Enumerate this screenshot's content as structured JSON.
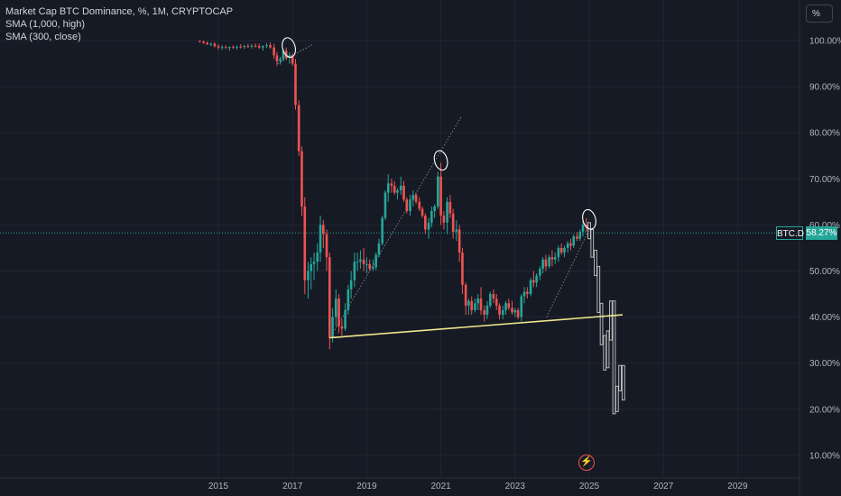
{
  "legend": {
    "title": "Market Cap BTC Dominance, %, 1M, CRYPTOCAP",
    "indicator1": "SMA (1,000, high)",
    "indicator2": "SMA (300, close)"
  },
  "scale_button_label": "%",
  "price_tag": {
    "symbol": "BTC.D",
    "value": "58.27%"
  },
  "event_icon": "lightning-icon",
  "colors": {
    "up": "#26a69a",
    "down": "#ef5350",
    "projection": "#c9c9c9",
    "support_line": "#f0e68c",
    "background": "#161a25",
    "grid": "#232632"
  },
  "chart_data": {
    "type": "candlestick",
    "title": "Market Cap BTC Dominance, %, 1M, CRYPTOCAP",
    "y_ticks": [
      "100.00%",
      "90.00%",
      "80.00%",
      "70.00%",
      "60.00%",
      "50.00%",
      "40.00%",
      "30.00%",
      "20.00%",
      "10.00%"
    ],
    "x_ticks": [
      "2015",
      "2017",
      "2019",
      "2021",
      "2023",
      "2025",
      "2027",
      "2029"
    ],
    "ylim": [
      8,
      108
    ],
    "last_value": 58.27,
    "grid": true,
    "support_trendline": [
      {
        "x": 2018.0,
        "y": 35.5
      },
      {
        "x": 2025.9,
        "y": 40.5
      }
    ],
    "annotations": [
      {
        "type": "circle",
        "x": 2016.9,
        "y": 98.5
      },
      {
        "type": "circle",
        "x": 2021.0,
        "y": 74.0
      },
      {
        "type": "circle",
        "x": 2025.0,
        "y": 61.2
      }
    ],
    "series_historical": [
      [
        2014.5,
        100,
        100,
        99.5,
        99.8
      ],
      [
        2014.6,
        99.8,
        100,
        99.3,
        99.5
      ],
      [
        2014.7,
        99.5,
        99.8,
        99.0,
        99.2
      ],
      [
        2014.8,
        99.2,
        99.6,
        98.8,
        99.3
      ],
      [
        2014.9,
        99.3,
        99.6,
        98.5,
        98.8
      ],
      [
        2015.0,
        98.8,
        99.2,
        98.0,
        98.5
      ],
      [
        2015.1,
        98.5,
        99.0,
        98.0,
        98.6
      ],
      [
        2015.2,
        98.6,
        99.0,
        98.2,
        98.4
      ],
      [
        2015.3,
        98.4,
        98.8,
        97.8,
        98.6
      ],
      [
        2015.4,
        98.6,
        99.0,
        98.2,
        98.5
      ],
      [
        2015.5,
        98.5,
        98.9,
        98.0,
        98.7
      ],
      [
        2015.6,
        98.7,
        99.2,
        98.3,
        98.6
      ],
      [
        2015.7,
        98.6,
        99.1,
        98.2,
        98.8
      ],
      [
        2015.8,
        98.8,
        99.3,
        98.4,
        98.7
      ],
      [
        2015.9,
        98.7,
        99.2,
        98.3,
        98.9
      ],
      [
        2016.0,
        98.9,
        99.4,
        98.5,
        98.8
      ],
      [
        2016.1,
        98.8,
        99.3,
        98.2,
        98.5
      ],
      [
        2016.2,
        98.5,
        99.0,
        97.8,
        98.8
      ],
      [
        2016.3,
        98.8,
        99.5,
        98.4,
        99.0
      ],
      [
        2016.4,
        99.0,
        99.6,
        98.2,
        98.5
      ],
      [
        2016.5,
        98.5,
        99.3,
        96.0,
        96.8
      ],
      [
        2016.58,
        96.8,
        97.5,
        94.5,
        95.5
      ],
      [
        2016.67,
        95.5,
        96.5,
        94.8,
        96.0
      ],
      [
        2016.75,
        96.0,
        98.2,
        95.5,
        97.8
      ],
      [
        2016.83,
        97.8,
        98.5,
        95.8,
        96.2
      ],
      [
        2016.92,
        96.2,
        97.5,
        95.0,
        96.8
      ],
      [
        2017.0,
        96.8,
        97.2,
        94.5,
        95.0
      ],
      [
        2017.08,
        95.0,
        96.0,
        85.0,
        86.0
      ],
      [
        2017.17,
        86.0,
        87.0,
        75.0,
        76.0
      ],
      [
        2017.25,
        76.0,
        77.0,
        62.0,
        64.0
      ],
      [
        2017.33,
        64.0,
        66.0,
        45.0,
        48.0
      ],
      [
        2017.42,
        48.0,
        52.0,
        44.0,
        50.0
      ],
      [
        2017.5,
        50.0,
        53.0,
        46.0,
        51.5
      ],
      [
        2017.58,
        51.5,
        54.0,
        48.0,
        52.0
      ],
      [
        2017.67,
        52.0,
        56.0,
        50.0,
        54.0
      ],
      [
        2017.75,
        54.0,
        62.0,
        52.0,
        60.0
      ],
      [
        2017.83,
        60.0,
        61.0,
        55.0,
        58.0
      ],
      [
        2017.92,
        58.0,
        59.0,
        50.0,
        53.0
      ],
      [
        2018.0,
        53.0,
        54.0,
        33.0,
        35.5
      ],
      [
        2018.08,
        35.5,
        42.0,
        34.5,
        40.0
      ],
      [
        2018.17,
        40.0,
        46.0,
        38.0,
        44.0
      ],
      [
        2018.25,
        44.0,
        45.0,
        36.5,
        38.0
      ],
      [
        2018.33,
        38.0,
        39.5,
        36.0,
        37.5
      ],
      [
        2018.42,
        37.5,
        43.0,
        37.0,
        41.5
      ],
      [
        2018.5,
        41.5,
        47.0,
        40.5,
        46.0
      ],
      [
        2018.58,
        46.0,
        50.0,
        44.0,
        48.0
      ],
      [
        2018.67,
        48.0,
        54.0,
        46.5,
        52.0
      ],
      [
        2018.75,
        52.0,
        54.0,
        50.0,
        52.0
      ],
      [
        2018.83,
        52.0,
        54.5,
        50.5,
        52.5
      ],
      [
        2018.92,
        52.5,
        55.0,
        50.0,
        51.5
      ],
      [
        2019.0,
        51.5,
        53.0,
        49.5,
        51.5
      ],
      [
        2019.08,
        51.5,
        52.5,
        50.0,
        50.5
      ],
      [
        2019.17,
        50.5,
        52.5,
        50.0,
        50.8
      ],
      [
        2019.25,
        50.8,
        54.0,
        50.2,
        53.5
      ],
      [
        2019.33,
        53.5,
        57.0,
        53.0,
        56.0
      ],
      [
        2019.42,
        56.0,
        62.0,
        55.5,
        61.5
      ],
      [
        2019.5,
        61.5,
        67.5,
        61.0,
        67.0
      ],
      [
        2019.58,
        67.0,
        71.0,
        65.0,
        69.0
      ],
      [
        2019.67,
        69.0,
        70.0,
        67.0,
        68.5
      ],
      [
        2019.75,
        68.5,
        69.5,
        66.5,
        67.0
      ],
      [
        2019.83,
        67.0,
        68.0,
        65.5,
        67.5
      ],
      [
        2019.92,
        67.5,
        70.5,
        66.5,
        68.5
      ],
      [
        2020.0,
        68.5,
        69.5,
        65.0,
        65.5
      ],
      [
        2020.08,
        65.5,
        66.0,
        62.5,
        63.0
      ],
      [
        2020.17,
        63.0,
        66.5,
        62.0,
        65.5
      ],
      [
        2020.25,
        65.5,
        67.5,
        64.0,
        66.5
      ],
      [
        2020.33,
        66.5,
        67.0,
        64.5,
        65.0
      ],
      [
        2020.42,
        65.0,
        66.0,
        63.0,
        63.5
      ],
      [
        2020.5,
        63.5,
        64.0,
        61.5,
        62.0
      ],
      [
        2020.58,
        62.0,
        62.5,
        58.0,
        59.0
      ],
      [
        2020.67,
        59.0,
        61.5,
        57.0,
        60.5
      ],
      [
        2020.75,
        60.5,
        64.0,
        59.5,
        63.0
      ],
      [
        2020.83,
        63.0,
        64.5,
        61.5,
        64.0
      ],
      [
        2020.92,
        64.0,
        71.5,
        63.5,
        70.5
      ],
      [
        2021.0,
        70.5,
        73.5,
        60.0,
        62.0
      ],
      [
        2021.08,
        62.0,
        63.0,
        59.0,
        60.5
      ],
      [
        2021.17,
        60.5,
        66.0,
        58.0,
        65.0
      ],
      [
        2021.25,
        65.0,
        66.5,
        61.5,
        62.5
      ],
      [
        2021.33,
        62.5,
        63.5,
        57.0,
        58.5
      ],
      [
        2021.42,
        58.5,
        61.0,
        56.5,
        59.0
      ],
      [
        2021.5,
        59.0,
        60.0,
        52.0,
        54.0
      ],
      [
        2021.58,
        54.0,
        55.0,
        45.0,
        47.0
      ],
      [
        2021.67,
        47.0,
        47.5,
        40.5,
        42.5
      ],
      [
        2021.75,
        42.5,
        44.0,
        40.5,
        43.5
      ],
      [
        2021.83,
        43.5,
        44.5,
        40.5,
        41.5
      ],
      [
        2021.92,
        41.5,
        44.0,
        41.0,
        43.0
      ],
      [
        2022.0,
        43.0,
        45.0,
        41.5,
        44.0
      ],
      [
        2022.08,
        44.0,
        46.5,
        40.5,
        41.5
      ],
      [
        2022.17,
        41.5,
        42.5,
        39.0,
        40.5
      ],
      [
        2022.25,
        40.5,
        43.5,
        39.5,
        42.5
      ],
      [
        2022.33,
        42.5,
        45.5,
        42.0,
        45.0
      ],
      [
        2022.42,
        45.0,
        46.0,
        43.0,
        44.0
      ],
      [
        2022.5,
        44.0,
        45.0,
        41.5,
        42.5
      ],
      [
        2022.58,
        42.5,
        43.0,
        39.5,
        40.5
      ],
      [
        2022.67,
        40.5,
        42.5,
        39.5,
        41.5
      ],
      [
        2022.75,
        41.5,
        43.5,
        40.5,
        43.0
      ],
      [
        2022.83,
        43.0,
        44.0,
        41.5,
        42.0
      ],
      [
        2022.92,
        42.0,
        43.5,
        40.5,
        41.0
      ],
      [
        2023.0,
        41.0,
        42.0,
        40.0,
        41.5
      ],
      [
        2023.08,
        41.5,
        42.0,
        39.5,
        40.0
      ],
      [
        2023.17,
        40.0,
        45.0,
        39.0,
        44.5
      ],
      [
        2023.25,
        44.5,
        46.5,
        43.0,
        45.5
      ],
      [
        2023.33,
        45.5,
        46.5,
        44.0,
        45.0
      ],
      [
        2023.42,
        45.0,
        48.5,
        44.5,
        48.0
      ],
      [
        2023.5,
        48.0,
        50.0,
        46.5,
        47.5
      ],
      [
        2023.58,
        47.5,
        49.5,
        46.5,
        49.0
      ],
      [
        2023.67,
        49.0,
        51.0,
        48.0,
        50.5
      ],
      [
        2023.75,
        50.5,
        53.0,
        49.5,
        52.5
      ],
      [
        2023.83,
        52.5,
        53.5,
        50.0,
        51.0
      ],
      [
        2023.92,
        51.0,
        53.5,
        50.5,
        53.0
      ],
      [
        2024.0,
        53.0,
        54.5,
        51.0,
        52.5
      ],
      [
        2024.08,
        52.5,
        54.0,
        51.5,
        53.0
      ],
      [
        2024.17,
        53.0,
        55.5,
        52.0,
        55.0
      ],
      [
        2024.25,
        55.0,
        56.0,
        53.5,
        54.0
      ],
      [
        2024.33,
        54.0,
        55.5,
        53.0,
        55.0
      ],
      [
        2024.42,
        55.0,
        56.5,
        54.0,
        56.0
      ],
      [
        2024.5,
        56.0,
        57.0,
        54.5,
        55.5
      ],
      [
        2024.58,
        55.5,
        58.0,
        55.0,
        57.5
      ],
      [
        2024.67,
        57.5,
        58.5,
        56.5,
        57.0
      ],
      [
        2024.75,
        57.0,
        59.0,
        56.5,
        58.5
      ],
      [
        2024.83,
        58.5,
        61.0,
        57.5,
        60.0
      ],
      [
        2024.92,
        60.0,
        61.5,
        58.5,
        59.5
      ]
    ],
    "series_projection": [
      [
        2025.0,
        59.5,
        60.5,
        57.0,
        58.27
      ],
      [
        2025.08,
        58.0,
        59.0,
        53.0,
        54.0
      ],
      [
        2025.17,
        54.0,
        54.5,
        49.0,
        50.0
      ],
      [
        2025.25,
        50.0,
        51.0,
        41.0,
        42.0
      ],
      [
        2025.33,
        42.0,
        43.0,
        34.0,
        35.0
      ],
      [
        2025.42,
        35.0,
        36.0,
        28.5,
        30.0
      ],
      [
        2025.5,
        30.0,
        37.0,
        29.0,
        36.0
      ],
      [
        2025.58,
        36.0,
        43.5,
        35.0,
        43.0
      ],
      [
        2025.67,
        43.0,
        43.5,
        19.0,
        20.0
      ],
      [
        2025.75,
        20.0,
        25.0,
        19.5,
        24.5
      ],
      [
        2025.83,
        24.5,
        29.5,
        24.0,
        29.0
      ],
      [
        2025.92,
        29.0,
        29.5,
        22.0,
        23.0
      ]
    ]
  }
}
